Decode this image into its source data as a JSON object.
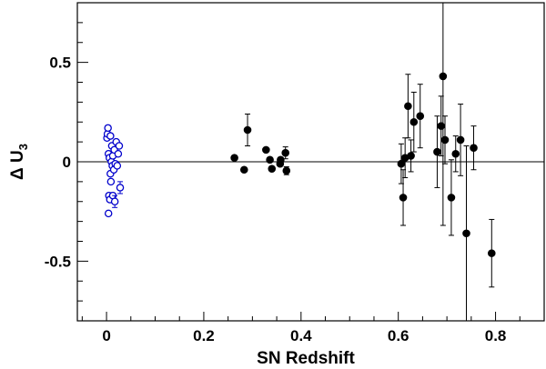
{
  "chart_data": {
    "type": "scatter",
    "xlabel": "SN Redshift",
    "ylabel_main": "Δ U",
    "ylabel_sub": "3",
    "xlim": [
      -0.06,
      0.9
    ],
    "ylim": [
      -0.8,
      0.8
    ],
    "xticks": [
      0,
      0.2,
      0.4,
      0.6,
      0.8
    ],
    "xtick_labels": [
      "0",
      "0.2",
      "0.4",
      "0.6",
      "0.8"
    ],
    "yticks": [
      -0.5,
      0,
      0.5
    ],
    "ytick_labels": [
      "-0.5",
      "0",
      "0.5"
    ],
    "reference_line_y": 0,
    "grid": false,
    "series": [
      {
        "marker": "open-circle",
        "color": "#0000cc",
        "points": [
          {
            "x": 0.001,
            "y": 0.12,
            "err": 0.0
          },
          {
            "x": 0.002,
            "y": 0.14,
            "err": 0.0
          },
          {
            "x": 0.003,
            "y": 0.17,
            "err": 0.0
          },
          {
            "x": 0.004,
            "y": -0.26,
            "err": 0.0
          },
          {
            "x": 0.004,
            "y": 0.04,
            "err": 0.0
          },
          {
            "x": 0.005,
            "y": -0.17,
            "err": 0.0
          },
          {
            "x": 0.006,
            "y": 0.02,
            "err": 0.0
          },
          {
            "x": 0.007,
            "y": -0.19,
            "err": 0.0
          },
          {
            "x": 0.008,
            "y": 0.13,
            "err": 0.0
          },
          {
            "x": 0.008,
            "y": -0.06,
            "err": 0.0
          },
          {
            "x": 0.009,
            "y": -0.1,
            "err": 0.0
          },
          {
            "x": 0.01,
            "y": 0.0,
            "err": 0.0
          },
          {
            "x": 0.011,
            "y": 0.08,
            "err": 0.0
          },
          {
            "x": 0.012,
            "y": -0.02,
            "err": 0.0
          },
          {
            "x": 0.013,
            "y": -0.17,
            "err": 0.0
          },
          {
            "x": 0.013,
            "y": 0.03,
            "err": 0.0
          },
          {
            "x": 0.015,
            "y": -0.04,
            "err": 0.0
          },
          {
            "x": 0.016,
            "y": 0.06,
            "err": 0.0
          },
          {
            "x": 0.017,
            "y": -0.2,
            "err": 0.03
          },
          {
            "x": 0.018,
            "y": -0.01,
            "err": 0.0
          },
          {
            "x": 0.02,
            "y": 0.1,
            "err": 0.0
          },
          {
            "x": 0.022,
            "y": -0.02,
            "err": 0.0
          },
          {
            "x": 0.024,
            "y": 0.04,
            "err": 0.0
          },
          {
            "x": 0.026,
            "y": 0.08,
            "err": 0.0
          },
          {
            "x": 0.028,
            "y": -0.13,
            "err": 0.03
          }
        ]
      },
      {
        "marker": "filled-circle",
        "color": "#000000",
        "points": [
          {
            "x": 0.263,
            "y": 0.02,
            "err": 0.0
          },
          {
            "x": 0.283,
            "y": -0.04,
            "err": 0.0
          },
          {
            "x": 0.29,
            "y": 0.16,
            "err": 0.08
          },
          {
            "x": 0.328,
            "y": 0.06,
            "err": 0.0
          },
          {
            "x": 0.336,
            "y": 0.01,
            "err": 0.0
          },
          {
            "x": 0.34,
            "y": -0.035,
            "err": 0.0
          },
          {
            "x": 0.357,
            "y": -0.01,
            "err": 0.0
          },
          {
            "x": 0.358,
            "y": 0.01,
            "err": 0.0
          },
          {
            "x": 0.368,
            "y": 0.045,
            "err": 0.03
          },
          {
            "x": 0.37,
            "y": -0.045,
            "err": 0.02
          },
          {
            "x": 0.606,
            "y": -0.01,
            "err": 0.1
          },
          {
            "x": 0.61,
            "y": -0.18,
            "err": 0.14
          },
          {
            "x": 0.614,
            "y": 0.02,
            "err": 0.1
          },
          {
            "x": 0.62,
            "y": 0.28,
            "err": 0.16
          },
          {
            "x": 0.626,
            "y": 0.03,
            "err": 0.08
          },
          {
            "x": 0.632,
            "y": 0.2,
            "err": 0.15
          },
          {
            "x": 0.645,
            "y": 0.23,
            "err": 0.16
          },
          {
            "x": 0.68,
            "y": 0.05,
            "err": 0.18
          },
          {
            "x": 0.688,
            "y": 0.18,
            "err": 0.15
          },
          {
            "x": 0.692,
            "y": 0.43,
            "err": 0.75
          },
          {
            "x": 0.696,
            "y": 0.11,
            "err": 0.12
          },
          {
            "x": 0.709,
            "y": -0.18,
            "err": 0.19
          },
          {
            "x": 0.718,
            "y": 0.04,
            "err": 0.09
          },
          {
            "x": 0.728,
            "y": 0.11,
            "err": 0.18
          },
          {
            "x": 0.74,
            "y": -0.36,
            "err": 0.44
          },
          {
            "x": 0.755,
            "y": 0.07,
            "err": 0.11
          },
          {
            "x": 0.792,
            "y": -0.46,
            "err": 0.17
          }
        ]
      }
    ]
  }
}
